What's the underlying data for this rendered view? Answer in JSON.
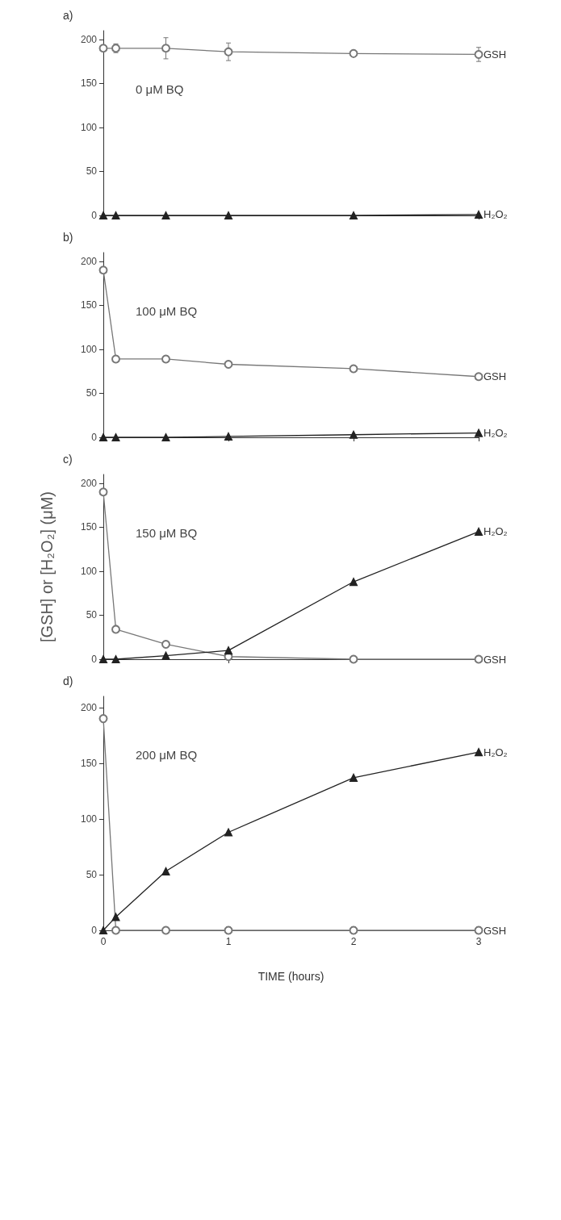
{
  "chart_data": [
    {
      "type": "line",
      "title": "a)",
      "annotations": [
        "0 μM BQ"
      ],
      "x": [
        0,
        0.1,
        0.5,
        1,
        2,
        3
      ],
      "xlim": [
        0,
        3
      ],
      "xticks": [
        0,
        1,
        2,
        3
      ],
      "ylim": [
        0,
        210
      ],
      "yticks": [
        0,
        50,
        100,
        150,
        200
      ],
      "tick_labels": "y",
      "grid": false,
      "legend": false,
      "series": [
        {
          "name": "GSH",
          "color": "#777777",
          "marker": "circle",
          "values": [
            190,
            190,
            190,
            186,
            184,
            183
          ],
          "errors": [
            null,
            5,
            12,
            10,
            null,
            8
          ]
        },
        {
          "name": "H₂O₂",
          "color": "#222222",
          "marker": "triangle",
          "values": [
            0,
            0,
            0,
            0,
            0,
            1
          ]
        }
      ]
    },
    {
      "type": "line",
      "title": "b)",
      "annotations": [
        "100 μM BQ"
      ],
      "x": [
        0,
        0.1,
        0.5,
        1,
        2,
        3
      ],
      "xlim": [
        0,
        3
      ],
      "xticks": [
        0,
        1,
        2,
        3
      ],
      "ylim": [
        0,
        210
      ],
      "yticks": [
        0,
        50,
        100,
        150,
        200
      ],
      "tick_labels": "y",
      "grid": false,
      "legend": false,
      "series": [
        {
          "name": "GSH",
          "color": "#777777",
          "marker": "circle",
          "values": [
            190,
            89,
            89,
            83,
            78,
            69
          ]
        },
        {
          "name": "H₂O₂",
          "color": "#222222",
          "marker": "triangle",
          "values": [
            0,
            0,
            0,
            1,
            3,
            5
          ]
        }
      ]
    },
    {
      "type": "line",
      "title": "c)",
      "ylabel": "[GSH] or [H₂O₂] (μM)",
      "annotations": [
        "150 μM BQ"
      ],
      "x": [
        0,
        0.1,
        0.5,
        1,
        2,
        3
      ],
      "xlim": [
        0,
        3
      ],
      "xticks": [
        0,
        1,
        2,
        3
      ],
      "ylim": [
        0,
        210
      ],
      "yticks": [
        0,
        50,
        100,
        150,
        200
      ],
      "tick_labels": "y",
      "grid": false,
      "legend": false,
      "series": [
        {
          "name": "GSH",
          "color": "#777777",
          "marker": "circle",
          "values": [
            190,
            34,
            17,
            3,
            0,
            0
          ],
          "errors": [
            null,
            null,
            null,
            null,
            3,
            3
          ]
        },
        {
          "name": "H₂O₂",
          "color": "#222222",
          "marker": "triangle",
          "values": [
            0,
            0,
            4,
            10,
            88,
            145
          ]
        }
      ]
    },
    {
      "type": "line",
      "title": "d)",
      "xlabel": "TIME (hours)",
      "annotations": [
        "200 μM BQ"
      ],
      "x": [
        0,
        0.1,
        0.5,
        1,
        2,
        3
      ],
      "xlim": [
        0,
        3
      ],
      "xticks": [
        0,
        1,
        2,
        3
      ],
      "ylim": [
        0,
        210
      ],
      "yticks": [
        0,
        50,
        100,
        150,
        200
      ],
      "grid": false,
      "legend": false,
      "series": [
        {
          "name": "GSH",
          "color": "#777777",
          "marker": "circle",
          "values": [
            190,
            0,
            0,
            0,
            0,
            0
          ],
          "errors": [
            null,
            null,
            null,
            3,
            3,
            3
          ]
        },
        {
          "name": "H₂O₂",
          "color": "#222222",
          "marker": "triangle",
          "values": [
            0,
            12,
            53,
            88,
            137,
            160
          ]
        }
      ]
    }
  ]
}
